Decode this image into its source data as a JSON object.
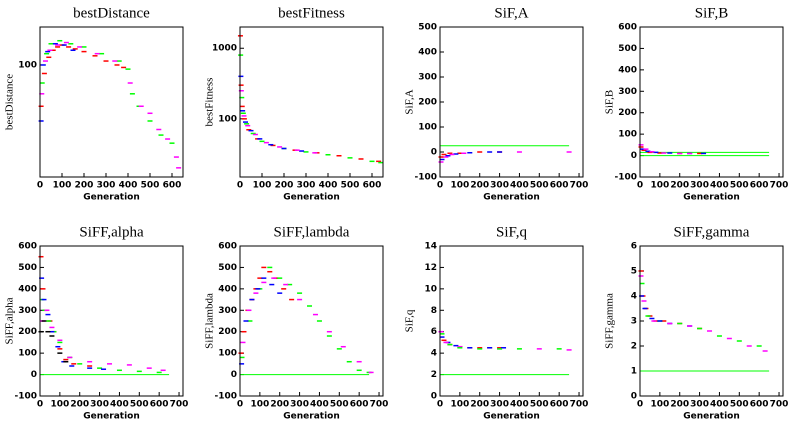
{
  "chart_data": [
    {
      "type": "scatter",
      "title": "bestDistance",
      "x_label": "Generation",
      "y_label": "bestDistance",
      "log_y": true,
      "xlim": [
        0,
        650
      ],
      "xticks": [
        0,
        100,
        200,
        300,
        400,
        500,
        600
      ],
      "ylim": [
        25,
        160
      ],
      "yticks": [
        100
      ],
      "series": [
        {
          "color": "#ff0000",
          "x": [
            5,
            20,
            40,
            60,
            80,
            100,
            130,
            160,
            200,
            250,
            300,
            350,
            380
          ],
          "values": [
            60,
            90,
            110,
            120,
            125,
            128,
            125,
            122,
            118,
            112,
            105,
            100,
            97
          ]
        },
        {
          "color": "#00ff00",
          "x": [
            10,
            30,
            50,
            90,
            140,
            200,
            280,
            360,
            400,
            420,
            450,
            500,
            550,
            600
          ],
          "values": [
            80,
            115,
            130,
            135,
            130,
            125,
            115,
            105,
            95,
            70,
            60,
            50,
            42,
            38
          ]
        },
        {
          "color": "#0000ff",
          "x": [
            5,
            15,
            35,
            70,
            110,
            150
          ],
          "values": [
            50,
            100,
            118,
            130,
            128,
            120
          ]
        },
        {
          "color": "#ff00ff",
          "x": [
            8,
            25,
            45,
            80,
            120,
            180,
            260,
            340,
            410,
            460,
            500,
            540,
            580,
            620,
            630
          ],
          "values": [
            70,
            105,
            120,
            128,
            132,
            125,
            115,
            105,
            80,
            60,
            55,
            45,
            40,
            32,
            28
          ]
        }
      ]
    },
    {
      "type": "scatter",
      "title": "bestFitness",
      "x_label": "Generation",
      "y_label": "bestFitness",
      "log_y": true,
      "xlim": [
        0,
        650
      ],
      "xticks": [
        0,
        100,
        200,
        300,
        400,
        500,
        600
      ],
      "ylim": [
        15,
        2000
      ],
      "yticks": [
        100,
        1000
      ],
      "series": [
        {
          "color": "#ff0000",
          "x": [
            2,
            5,
            10,
            20,
            40,
            80,
            150,
            250,
            350,
            450,
            550,
            630
          ],
          "values": [
            1500,
            300,
            150,
            100,
            70,
            52,
            42,
            36,
            33,
            30,
            27,
            25
          ]
        },
        {
          "color": "#00ff00",
          "x": [
            3,
            8,
            15,
            30,
            60,
            100,
            200,
            300,
            400,
            500,
            600,
            640
          ],
          "values": [
            800,
            200,
            120,
            85,
            62,
            48,
            38,
            34,
            31,
            28,
            25,
            24
          ]
        },
        {
          "color": "#0000ff",
          "x": [
            4,
            12,
            25,
            50,
            90,
            140,
            200,
            280
          ],
          "values": [
            400,
            130,
            90,
            68,
            52,
            43,
            38,
            35
          ]
        },
        {
          "color": "#ff00ff",
          "x": [
            6,
            18,
            35,
            70,
            120,
            180,
            260,
            340
          ],
          "values": [
            250,
            110,
            80,
            60,
            46,
            40,
            36,
            33
          ]
        }
      ]
    },
    {
      "type": "scatter",
      "title": "SiF,A",
      "x_label": "Generation",
      "y_label": "SiF,A",
      "xlim": [
        0,
        720
      ],
      "xticks": [
        0,
        100,
        200,
        300,
        400,
        500,
        600,
        700
      ],
      "ylim": [
        -100,
        500
      ],
      "yticks": [
        -100,
        0,
        100,
        200,
        300,
        400,
        500
      ],
      "series": [
        {
          "color": "#00ff00",
          "style": "line",
          "x": [
            0,
            650
          ],
          "values": [
            25,
            25
          ]
        },
        {
          "color": "#ff0000",
          "x": [
            5,
            20,
            50,
            100,
            200,
            300
          ],
          "values": [
            -20,
            -10,
            -5,
            -5,
            0,
            0
          ]
        },
        {
          "color": "#0000ff",
          "x": [
            10,
            40,
            80,
            150,
            250,
            300
          ],
          "values": [
            -30,
            -15,
            -8,
            -3,
            0,
            0
          ]
        },
        {
          "color": "#ff00ff",
          "x": [
            5,
            30,
            60,
            120,
            400,
            650
          ],
          "values": [
            -40,
            -20,
            -10,
            -5,
            0,
            0
          ]
        }
      ]
    },
    {
      "type": "scatter",
      "title": "SiF,B",
      "x_label": "Generation",
      "y_label": "SiF,B",
      "xlim": [
        0,
        720
      ],
      "xticks": [
        0,
        100,
        200,
        300,
        400,
        500,
        600,
        700
      ],
      "ylim": [
        -100,
        600
      ],
      "yticks": [
        -100,
        0,
        100,
        200,
        300,
        400,
        500,
        600
      ],
      "series": [
        {
          "color": "#00ff00",
          "style": "line",
          "x": [
            0,
            650
          ],
          "values": [
            15,
            15
          ]
        },
        {
          "color": "#00ff00",
          "style": "line",
          "x": [
            0,
            650
          ],
          "values": [
            0,
            0
          ]
        },
        {
          "color": "#ff0000",
          "x": [
            5,
            20,
            50,
            100,
            200,
            300
          ],
          "values": [
            40,
            25,
            15,
            12,
            10,
            10
          ]
        },
        {
          "color": "#0000ff",
          "x": [
            10,
            40,
            80,
            150,
            250,
            320
          ],
          "values": [
            30,
            20,
            15,
            12,
            10,
            10
          ]
        },
        {
          "color": "#ff00ff",
          "x": [
            5,
            30,
            60,
            120,
            200,
            250
          ],
          "values": [
            50,
            30,
            18,
            12,
            10,
            10
          ]
        }
      ]
    },
    {
      "type": "scatter",
      "title": "SiFF,alpha",
      "x_label": "Generation",
      "y_label": "SiFF,alpha",
      "xlim": [
        0,
        720
      ],
      "xticks": [
        0,
        100,
        200,
        300,
        400,
        500,
        600,
        700
      ],
      "ylim": [
        -100,
        600
      ],
      "yticks": [
        -100,
        0,
        100,
        200,
        300,
        400,
        500,
        600
      ],
      "series": [
        {
          "color": "#00ff00",
          "style": "line",
          "x": [
            0,
            650
          ],
          "values": [
            0,
            0
          ]
        },
        {
          "color": "#ff0000",
          "x": [
            5,
            15,
            30,
            50,
            70,
            100,
            130,
            170,
            250
          ],
          "values": [
            550,
            400,
            300,
            250,
            200,
            120,
            70,
            50,
            40
          ]
        },
        {
          "color": "#00ff00",
          "x": [
            10,
            25,
            45,
            70,
            100,
            150,
            200,
            300,
            400,
            500,
            600
          ],
          "values": [
            350,
            300,
            250,
            200,
            150,
            80,
            50,
            30,
            20,
            15,
            10
          ]
        },
        {
          "color": "#0000ff",
          "x": [
            8,
            20,
            40,
            60,
            90,
            120,
            160,
            250,
            320
          ],
          "values": [
            450,
            350,
            280,
            200,
            130,
            60,
            40,
            30,
            25
          ]
        },
        {
          "color": "#ff00ff",
          "x": [
            12,
            35,
            60,
            100,
            150,
            250,
            350,
            450,
            550,
            620
          ],
          "values": [
            250,
            300,
            220,
            160,
            80,
            60,
            50,
            45,
            30,
            20
          ]
        },
        {
          "color": "#000000",
          "x": [
            5,
            20,
            40,
            60,
            100,
            130
          ],
          "values": [
            200,
            250,
            200,
            180,
            100,
            60
          ]
        }
      ]
    },
    {
      "type": "scatter",
      "title": "SiFF,lambda",
      "x_label": "Generation",
      "y_label": "SiFF,lambda",
      "xlim": [
        0,
        720
      ],
      "xticks": [
        0,
        100,
        200,
        300,
        400,
        500,
        600,
        700
      ],
      "ylim": [
        -100,
        600
      ],
      "yticks": [
        -100,
        0,
        100,
        200,
        300,
        400,
        500,
        600
      ],
      "series": [
        {
          "color": "#00ff00",
          "style": "line",
          "x": [
            0,
            650
          ],
          "values": [
            0,
            0
          ]
        },
        {
          "color": "#ff0000",
          "x": [
            5,
            20,
            40,
            60,
            80,
            100,
            120,
            150,
            180,
            220,
            260
          ],
          "values": [
            100,
            200,
            300,
            350,
            400,
            450,
            500,
            480,
            450,
            400,
            350
          ]
        },
        {
          "color": "#00ff00",
          "x": [
            10,
            50,
            100,
            150,
            200,
            250,
            300,
            350,
            400,
            450,
            500,
            550,
            600,
            650
          ],
          "values": [
            80,
            250,
            400,
            500,
            450,
            420,
            380,
            320,
            250,
            180,
            120,
            60,
            20,
            10
          ]
        },
        {
          "color": "#0000ff",
          "x": [
            8,
            30,
            60,
            90,
            120,
            160,
            200
          ],
          "values": [
            50,
            250,
            350,
            400,
            450,
            420,
            380
          ]
        },
        {
          "color": "#ff00ff",
          "x": [
            15,
            45,
            80,
            120,
            170,
            230,
            300,
            380,
            450,
            520,
            600,
            660
          ],
          "values": [
            150,
            300,
            380,
            430,
            450,
            420,
            350,
            280,
            200,
            130,
            60,
            10
          ]
        }
      ]
    },
    {
      "type": "scatter",
      "title": "SiF,q",
      "x_label": "Generation",
      "y_label": "SiF,q",
      "xlim": [
        0,
        720
      ],
      "xticks": [
        0,
        100,
        200,
        300,
        400,
        500,
        600,
        700
      ],
      "ylim": [
        0,
        14
      ],
      "yticks": [
        0,
        2,
        4,
        6,
        8,
        10,
        12,
        14
      ],
      "series": [
        {
          "color": "#00ff00",
          "style": "line",
          "x": [
            0,
            650
          ],
          "values": [
            2,
            2
          ]
        },
        {
          "color": "#ff0000",
          "x": [
            5,
            20,
            50,
            100,
            150,
            200,
            250,
            300
          ],
          "values": [
            6,
            5.2,
            4.8,
            4.6,
            4.5,
            4.5,
            4.5,
            4.5
          ]
        },
        {
          "color": "#0000ff",
          "x": [
            10,
            40,
            80,
            150,
            250,
            320
          ],
          "values": [
            5.5,
            5,
            4.7,
            4.5,
            4.5,
            4.5
          ]
        },
        {
          "color": "#ff00ff",
          "x": [
            5,
            30,
            100,
            300,
            500,
            650
          ],
          "values": [
            6,
            5,
            4.6,
            4.4,
            4.4,
            4.3
          ]
        },
        {
          "color": "#00ff00",
          "x": [
            10,
            50,
            100,
            200,
            300,
            400,
            600
          ],
          "values": [
            5.8,
            4.8,
            4.5,
            4.4,
            4.4,
            4.4,
            4.4
          ]
        }
      ]
    },
    {
      "type": "scatter",
      "title": "SiFF,gamma",
      "x_label": "Generation",
      "y_label": "SiFF,gamma",
      "xlim": [
        0,
        720
      ],
      "xticks": [
        0,
        100,
        200,
        300,
        400,
        500,
        600,
        700
      ],
      "ylim": [
        0,
        6
      ],
      "yticks": [
        0,
        1,
        2,
        3,
        4,
        5,
        6
      ],
      "series": [
        {
          "color": "#00ff00",
          "style": "line",
          "x": [
            0,
            650
          ],
          "values": [
            1,
            1
          ]
        },
        {
          "color": "#ff0000",
          "x": [
            5,
            15,
            30,
            50,
            80,
            120,
            200,
            300
          ],
          "values": [
            5,
            4,
            3.5,
            3.2,
            3,
            3,
            2.9,
            2.7
          ]
        },
        {
          "color": "#00ff00",
          "x": [
            10,
            40,
            100,
            200,
            300,
            400,
            500,
            600
          ],
          "values": [
            4.5,
            3.2,
            3,
            2.9,
            2.7,
            2.4,
            2.2,
            2
          ]
        },
        {
          "color": "#0000ff",
          "x": [
            8,
            25,
            60,
            100,
            150,
            250
          ],
          "values": [
            4,
            3.5,
            3.1,
            3,
            2.9,
            2.8
          ]
        },
        {
          "color": "#ff00ff",
          "x": [
            5,
            20,
            70,
            150,
            250,
            350,
            450,
            550,
            630
          ],
          "values": [
            4.8,
            3.8,
            3,
            2.9,
            2.8,
            2.6,
            2.3,
            2,
            1.8
          ]
        }
      ]
    }
  ]
}
